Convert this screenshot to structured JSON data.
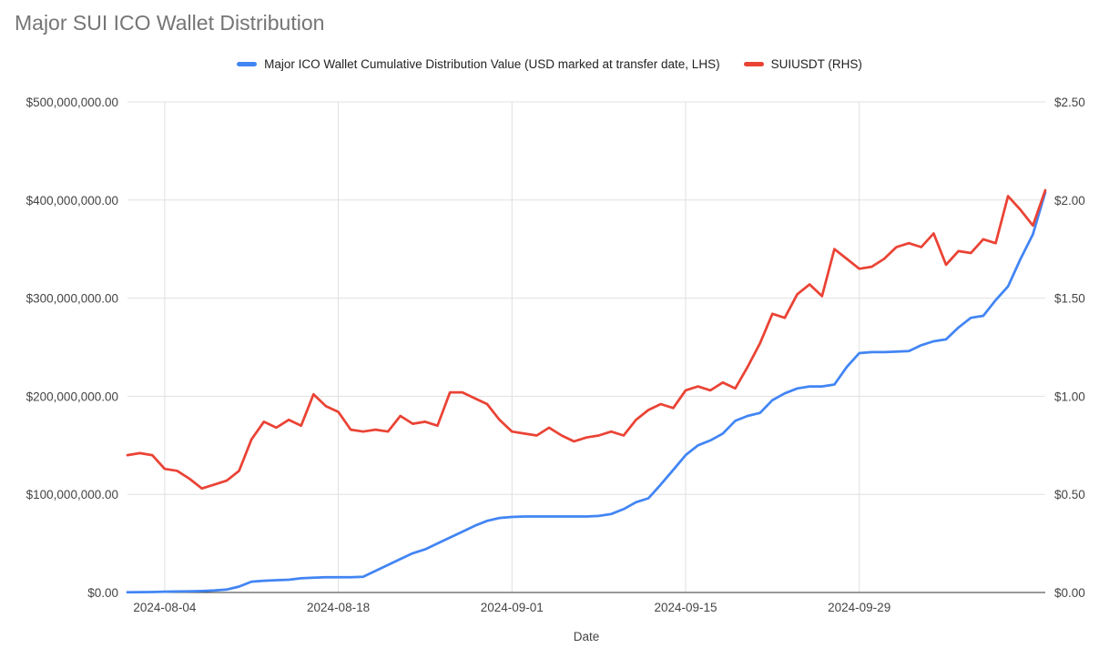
{
  "chart_data": {
    "type": "line",
    "title": "Major SUI ICO Wallet Distribution",
    "xlabel": "Date",
    "legend_position": "top",
    "grid": true,
    "x": [
      "2024-08-01",
      "2024-08-02",
      "2024-08-03",
      "2024-08-04",
      "2024-08-05",
      "2024-08-06",
      "2024-08-07",
      "2024-08-08",
      "2024-08-09",
      "2024-08-10",
      "2024-08-11",
      "2024-08-12",
      "2024-08-13",
      "2024-08-14",
      "2024-08-15",
      "2024-08-16",
      "2024-08-17",
      "2024-08-18",
      "2024-08-19",
      "2024-08-20",
      "2024-08-21",
      "2024-08-22",
      "2024-08-23",
      "2024-08-24",
      "2024-08-25",
      "2024-08-26",
      "2024-08-27",
      "2024-08-28",
      "2024-08-29",
      "2024-08-30",
      "2024-08-31",
      "2024-09-01",
      "2024-09-02",
      "2024-09-03",
      "2024-09-04",
      "2024-09-05",
      "2024-09-06",
      "2024-09-07",
      "2024-09-08",
      "2024-09-09",
      "2024-09-10",
      "2024-09-11",
      "2024-09-12",
      "2024-09-13",
      "2024-09-14",
      "2024-09-15",
      "2024-09-16",
      "2024-09-17",
      "2024-09-18",
      "2024-09-19",
      "2024-09-20",
      "2024-09-21",
      "2024-09-22",
      "2024-09-23",
      "2024-09-24",
      "2024-09-25",
      "2024-09-26",
      "2024-09-27",
      "2024-09-28",
      "2024-09-29",
      "2024-09-30",
      "2024-10-01",
      "2024-10-02",
      "2024-10-03",
      "2024-10-04",
      "2024-10-05",
      "2024-10-06",
      "2024-10-07",
      "2024-10-08",
      "2024-10-09",
      "2024-10-10",
      "2024-10-11",
      "2024-10-12",
      "2024-10-13",
      "2024-10-14"
    ],
    "x_ticks": [
      "2024-08-04",
      "2024-08-18",
      "2024-09-01",
      "2024-09-15",
      "2024-09-29"
    ],
    "series": [
      {
        "name": "Major ICO Wallet Cumulative Distribution Value (USD marked at transfer date, LHS)",
        "axis": "left",
        "color": "#4285f4",
        "values": [
          300000,
          400000,
          500000,
          800000,
          1000000,
          1200000,
          1500000,
          2000000,
          3000000,
          6000000,
          11000000,
          12000000,
          12500000,
          13000000,
          14500000,
          15000000,
          15500000,
          15500000,
          15500000,
          16000000,
          22000000,
          28000000,
          34000000,
          40000000,
          44000000,
          50000000,
          56000000,
          62000000,
          68000000,
          73000000,
          76000000,
          77000000,
          77500000,
          77500000,
          77500000,
          77500000,
          77500000,
          77500000,
          78000000,
          80000000,
          85000000,
          92000000,
          96000000,
          110000000,
          125000000,
          140000000,
          150000000,
          155000000,
          162000000,
          175000000,
          180000000,
          183000000,
          196000000,
          203000000,
          208000000,
          210000000,
          210000000,
          212000000,
          230000000,
          244000000,
          245000000,
          245000000,
          245500000,
          246000000,
          252000000,
          256000000,
          258000000,
          270000000,
          280000000,
          282000000,
          298000000,
          312000000,
          340000000,
          365000000,
          408000000
        ]
      },
      {
        "name": "SUIUSDT (RHS)",
        "axis": "right",
        "color": "#ea4335",
        "values": [
          0.7,
          0.71,
          0.7,
          0.63,
          0.62,
          0.58,
          0.53,
          0.55,
          0.57,
          0.62,
          0.78,
          0.87,
          0.84,
          0.88,
          0.85,
          1.01,
          0.95,
          0.92,
          0.83,
          0.82,
          0.83,
          0.82,
          0.9,
          0.86,
          0.87,
          0.85,
          1.02,
          1.02,
          0.99,
          0.96,
          0.88,
          0.82,
          0.81,
          0.8,
          0.84,
          0.8,
          0.77,
          0.79,
          0.8,
          0.82,
          0.8,
          0.88,
          0.93,
          0.96,
          0.94,
          1.03,
          1.05,
          1.03,
          1.07,
          1.04,
          1.15,
          1.27,
          1.42,
          1.4,
          1.52,
          1.57,
          1.51,
          1.75,
          1.7,
          1.65,
          1.66,
          1.7,
          1.76,
          1.78,
          1.76,
          1.83,
          1.67,
          1.74,
          1.73,
          1.8,
          1.78,
          2.02,
          1.95,
          1.87,
          2.05
        ]
      }
    ],
    "left_axis": {
      "min": 0,
      "max": 500000000,
      "ticks": [
        0,
        100000000,
        200000000,
        300000000,
        400000000,
        500000000
      ],
      "labels": [
        "$0.00",
        "$100,000,000.00",
        "$200,000,000.00",
        "$300,000,000.00",
        "$400,000,000.00",
        "$500,000,000.00"
      ]
    },
    "right_axis": {
      "min": 0,
      "max": 2.5,
      "ticks": [
        0,
        0.5,
        1.0,
        1.5,
        2.0,
        2.5
      ],
      "labels": [
        "$0.00",
        "$0.50",
        "$1.00",
        "$1.50",
        "$2.00",
        "$2.50"
      ]
    }
  }
}
